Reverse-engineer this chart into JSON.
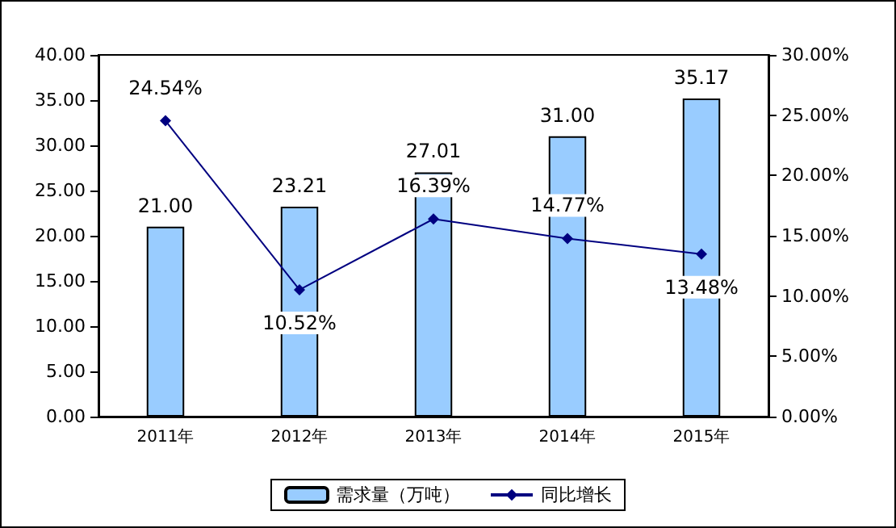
{
  "chart_data": {
    "type": "bar",
    "categories": [
      "2011年",
      "2012年",
      "2013年",
      "2014年",
      "2015年"
    ],
    "series": [
      {
        "name": "需求量（万吨）",
        "color": "#99ccff",
        "values": [
          21.0,
          23.21,
          27.01,
          31.0,
          35.17
        ],
        "value_labels": [
          "21.00",
          "23.21",
          "27.01",
          "31.00",
          "35.17"
        ]
      },
      {
        "name": "同比增长",
        "type": "line",
        "axis": "y2",
        "color": "#000080",
        "marker": "diamond",
        "values": [
          24.54,
          10.52,
          16.39,
          14.77,
          13.48
        ],
        "value_labels": [
          "24.54%",
          "10.52%",
          "16.39%",
          "14.77%",
          "13.48%"
        ]
      }
    ],
    "ylim": [
      0,
      40
    ],
    "yticks": [
      {
        "value": 0,
        "label": "0.00"
      },
      {
        "value": 5,
        "label": "5.00"
      },
      {
        "value": 10,
        "label": "10.00"
      },
      {
        "value": 15,
        "label": "15.00"
      },
      {
        "value": 20,
        "label": "20.00"
      },
      {
        "value": 25,
        "label": "25.00"
      },
      {
        "value": 30,
        "label": "30.00"
      },
      {
        "value": 35,
        "label": "35.00"
      },
      {
        "value": 40,
        "label": "40.00"
      }
    ],
    "y2lim": [
      0,
      30
    ],
    "y2ticks": [
      {
        "value": 0,
        "label": "0.00%"
      },
      {
        "value": 5,
        "label": "5.00%"
      },
      {
        "value": 10,
        "label": "10.00%"
      },
      {
        "value": 15,
        "label": "15.00%"
      },
      {
        "value": 20,
        "label": "20.00%"
      },
      {
        "value": 25,
        "label": "25.00%"
      },
      {
        "value": 30,
        "label": "30.00%"
      }
    ],
    "grid": false,
    "legend": "bottom"
  }
}
